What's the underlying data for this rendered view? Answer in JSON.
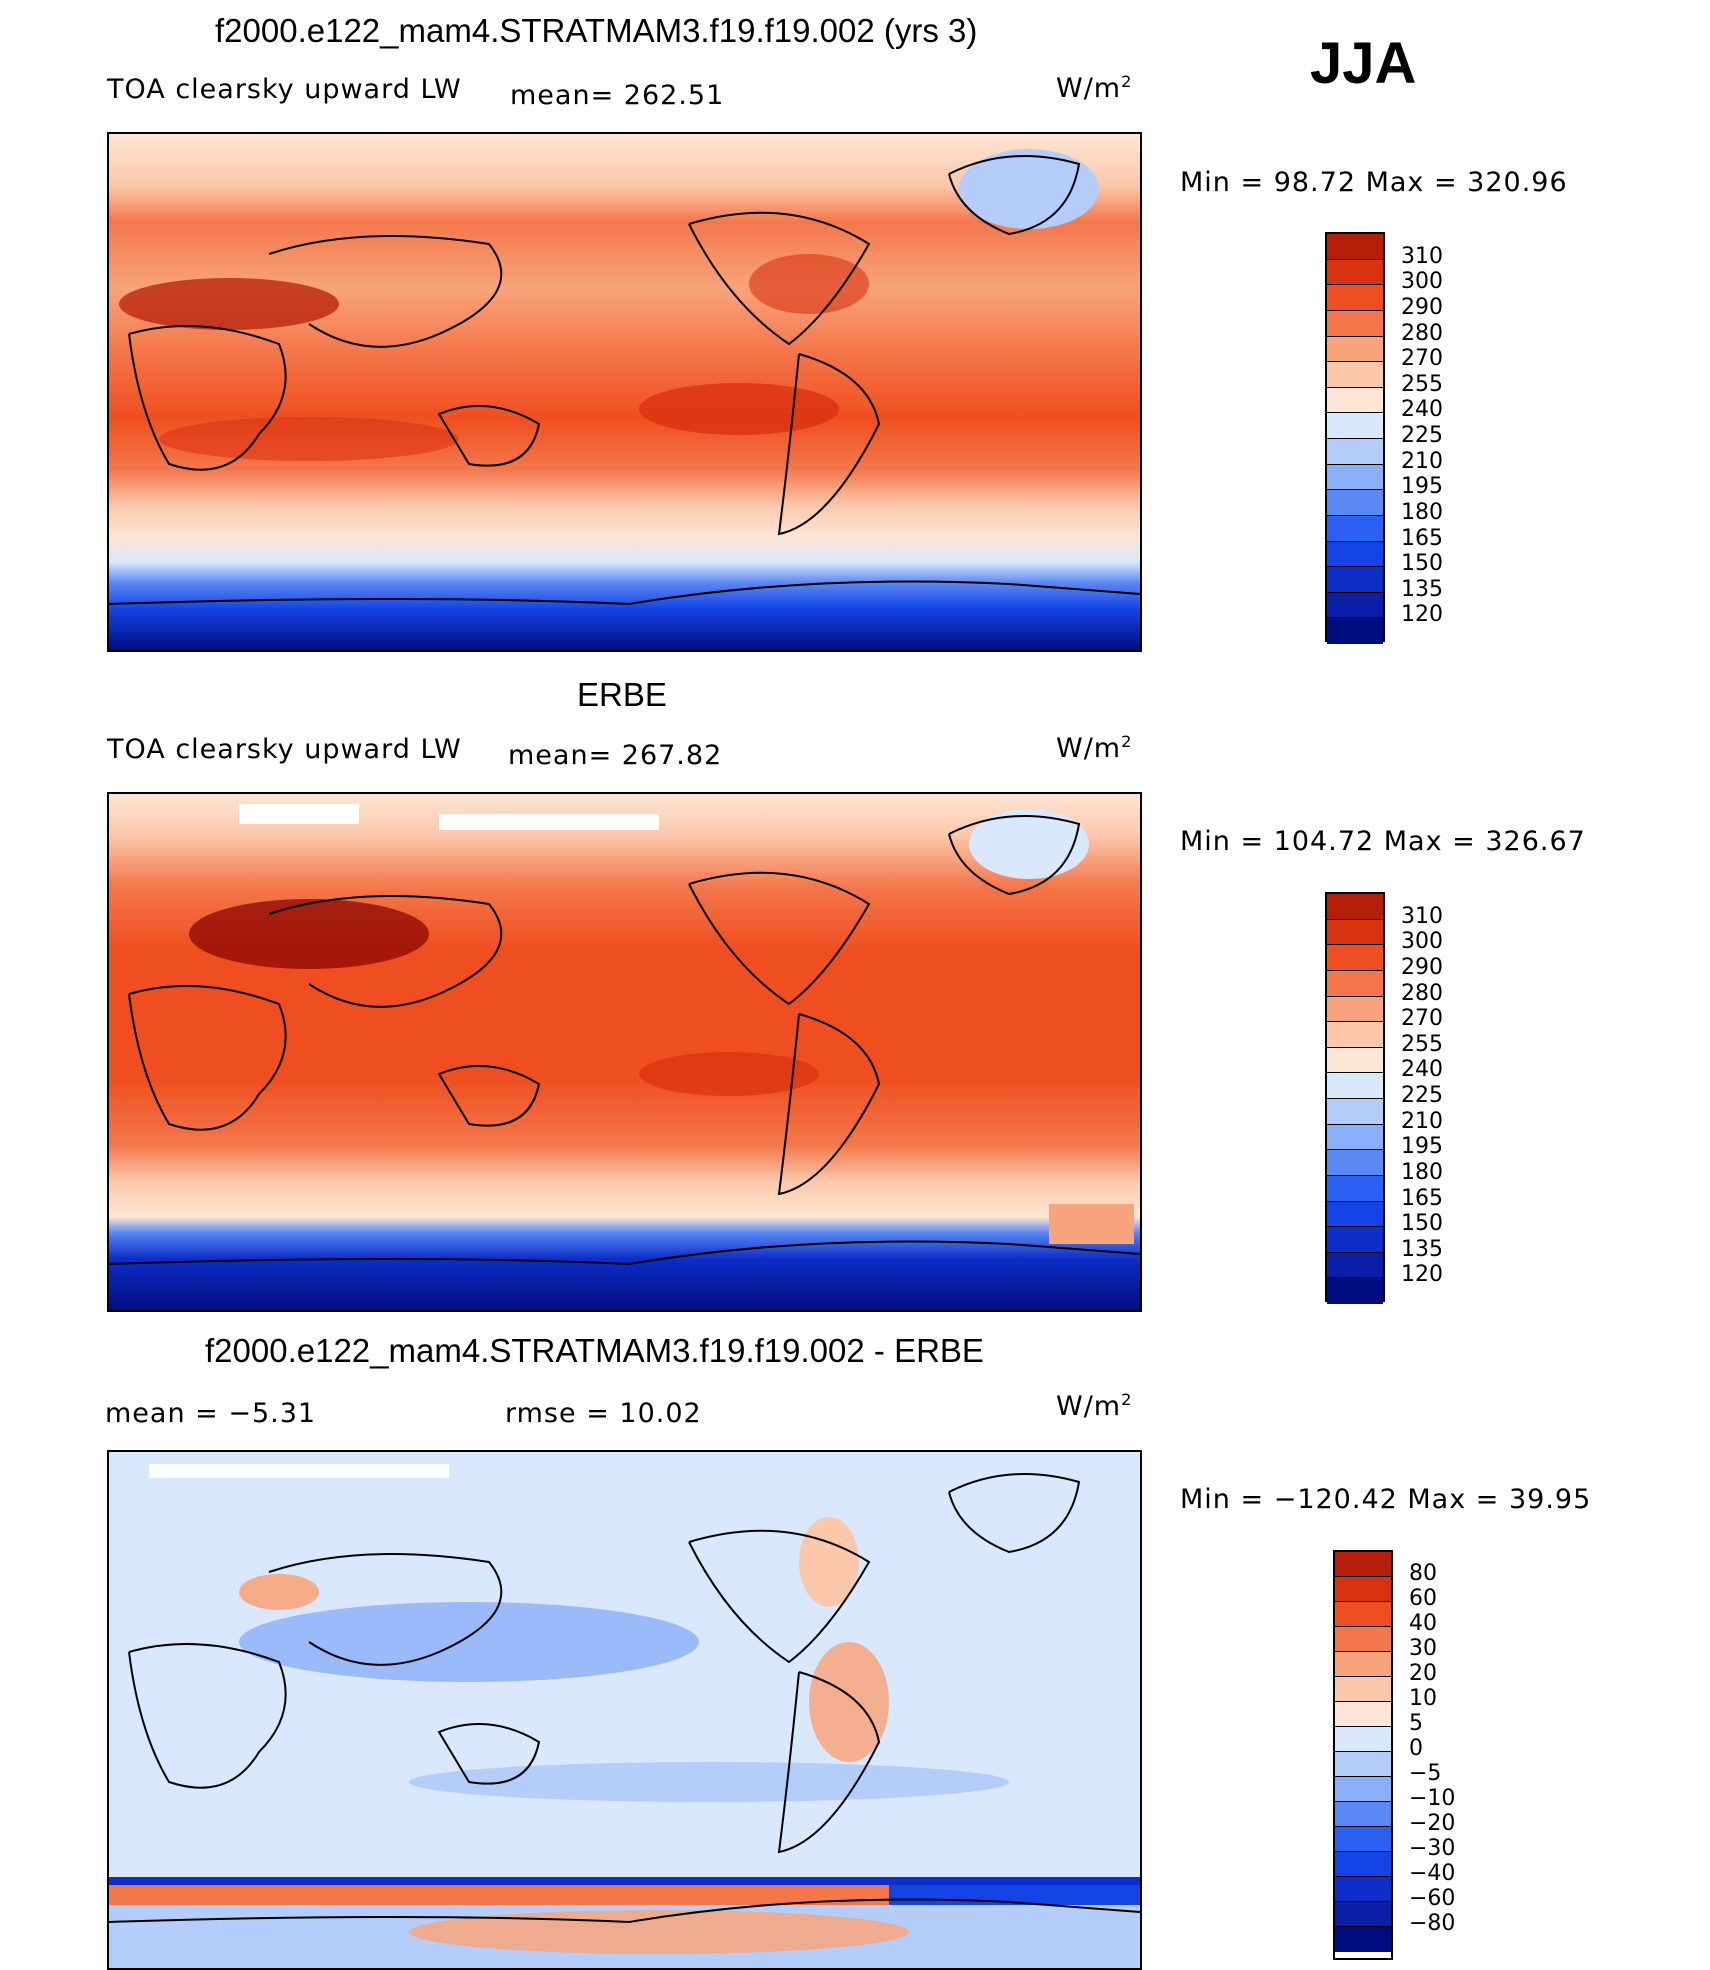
{
  "season": "JJA",
  "colors": {
    "abs_levels": [
      "#000d80",
      "#0a1ea8",
      "#0d2ec8",
      "#1444e6",
      "#2b60f2",
      "#5b88f5",
      "#8aaef7",
      "#b4cdfa",
      "#d9e8fc",
      "#fde6d5",
      "#fbc8ab",
      "#f8a47c",
      "#f4774c",
      "#ef4f20",
      "#d93210",
      "#b51e0a",
      "#840000"
    ],
    "diff_levels": [
      "#000d80",
      "#0a1ea8",
      "#0d2ec8",
      "#1444e6",
      "#2b60f2",
      "#5b88f5",
      "#8aaef7",
      "#b4cdfa",
      "#d9e8fc",
      "#fde6d5",
      "#fbc8ab",
      "#f8a47c",
      "#f4774c",
      "#ef4f20",
      "#d93210",
      "#b51e0a",
      "#840000"
    ]
  },
  "chart_data": [
    {
      "type": "heatmap",
      "title": "f2000.e122_mam4.STRATMAM3.f19.f19.002 (yrs 3)",
      "left_label": "TOA clearsky upward LW",
      "mean_label": "mean= 262.51",
      "mean": 262.51,
      "units": "W/m",
      "units_sup": "2",
      "minmax_label": "Min =   98.72 Max = 320.96",
      "min": 98.72,
      "max": 320.96,
      "colorbar_labels": [
        "310",
        "300",
        "290",
        "280",
        "270",
        "255",
        "240",
        "225",
        "210",
        "195",
        "180",
        "165",
        "150",
        "135",
        "120"
      ]
    },
    {
      "type": "heatmap",
      "title": "ERBE",
      "left_label": "TOA clearsky upward LW",
      "mean_label": "mean= 267.82",
      "mean": 267.82,
      "units": "W/m",
      "units_sup": "2",
      "minmax_label": "Min = 104.72 Max = 326.67",
      "min": 104.72,
      "max": 326.67,
      "colorbar_labels": [
        "310",
        "300",
        "290",
        "280",
        "270",
        "255",
        "240",
        "225",
        "210",
        "195",
        "180",
        "165",
        "150",
        "135",
        "120"
      ]
    },
    {
      "type": "heatmap",
      "title": "f2000.e122_mam4.STRATMAM3.f19.f19.002 - ERBE",
      "mean_label": "mean =   −5.31",
      "mean": -5.31,
      "rmse_label": "rmse =   10.02",
      "rmse": 10.02,
      "units": "W/m",
      "units_sup": "2",
      "minmax_label": "Min = −120.42 Max =   39.95",
      "min": -120.42,
      "max": 39.95,
      "colorbar_labels": [
        "80",
        "60",
        "40",
        "30",
        "20",
        "10",
        "5",
        "0",
        "−5",
        "−10",
        "−20",
        "−30",
        "−40",
        "−60",
        "−80"
      ]
    }
  ]
}
